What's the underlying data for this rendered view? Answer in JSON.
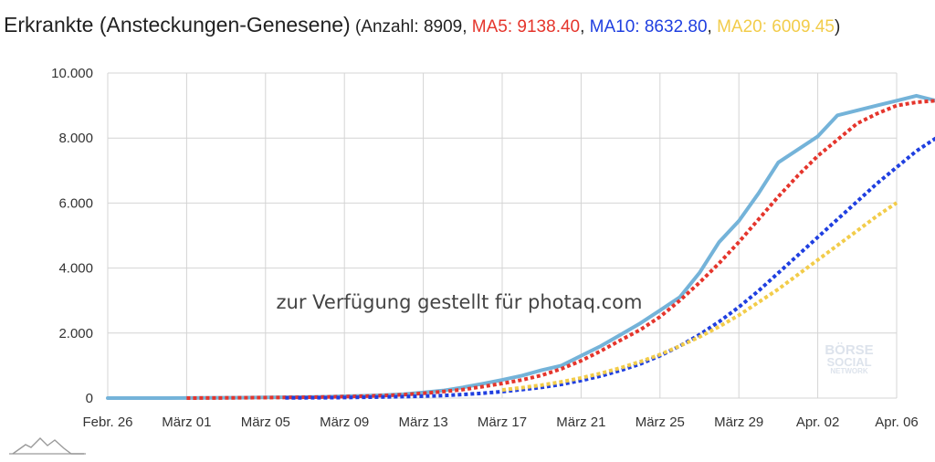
{
  "title": {
    "main": "Erkrankte (Ansteckungen-Genesene)",
    "open": " (",
    "anzahl": "Anzahl: 8909",
    "sep": ", ",
    "ma5": "MA5: 9138.40",
    "ma10": "MA10: 8632.80",
    "ma20": "MA20: 6009.45",
    "close": ")"
  },
  "colors": {
    "anzahl": "#74b3d9",
    "ma5": "#e5352c",
    "ma10": "#1f3fe0",
    "ma20": "#f2cc4a",
    "grid": "#d4d4d4"
  },
  "watermark": "zur Verfügung gestellt für photaq.com",
  "logo": {
    "line1": "BÖRSE",
    "line2": "SOCIAL",
    "line3": "NETWORK"
  },
  "chart_data": {
    "type": "line",
    "x_start": "2020-02-26",
    "x_ticks": [
      "Febr. 26",
      "März 01",
      "März 05",
      "März 09",
      "März 13",
      "März 17",
      "März 21",
      "März 25",
      "März 29",
      "Apr. 02",
      "Apr. 06"
    ],
    "y_ticks": [
      "0",
      "2.000",
      "4.000",
      "6.000",
      "8.000",
      "10.000"
    ],
    "ylim": [
      0,
      10000
    ],
    "grid": true,
    "series": [
      {
        "name": "Anzahl",
        "style": "solid",
        "start_index": 0,
        "values": [
          0,
          0,
          0,
          0,
          2,
          5,
          10,
          15,
          20,
          25,
          30,
          40,
          55,
          70,
          90,
          120,
          170,
          230,
          330,
          440,
          560,
          690,
          860,
          1000,
          1300,
          1600,
          1950,
          2300,
          2700,
          3100,
          3850,
          4800,
          5450,
          6300,
          7250,
          7650,
          8050,
          8700,
          8850,
          9000,
          9150,
          9300,
          9150,
          8909
        ]
      },
      {
        "name": "MA5",
        "style": "dotted",
        "start_index": 4,
        "values": [
          0,
          2,
          5,
          10,
          15,
          20,
          25,
          35,
          45,
          60,
          80,
          105,
          145,
          200,
          260,
          350,
          450,
          560,
          700,
          900,
          1150,
          1450,
          1780,
          2100,
          2500,
          3000,
          3550,
          4150,
          4800,
          5500,
          6200,
          6850,
          7450,
          7950,
          8450,
          8750,
          9000,
          9100,
          9150,
          9138.4
        ]
      },
      {
        "name": "MA10",
        "style": "dotted",
        "start_index": 9,
        "values": [
          5,
          8,
          12,
          18,
          25,
          35,
          45,
          60,
          80,
          110,
          150,
          200,
          260,
          330,
          420,
          540,
          680,
          850,
          1050,
          1300,
          1600,
          1950,
          2350,
          2800,
          3300,
          3850,
          4400,
          4950,
          5500,
          6050,
          6600,
          7100,
          7600,
          8000,
          8350,
          8632.8
        ]
      },
      {
        "name": "MA20",
        "style": "dotted",
        "start_index": 20,
        "values": [
          250,
          320,
          400,
          500,
          620,
          760,
          930,
          1120,
          1340,
          1600,
          1880,
          2200,
          2550,
          2950,
          3350,
          3800,
          4250,
          4700,
          5150,
          5600,
          6009.45
        ]
      }
    ]
  }
}
